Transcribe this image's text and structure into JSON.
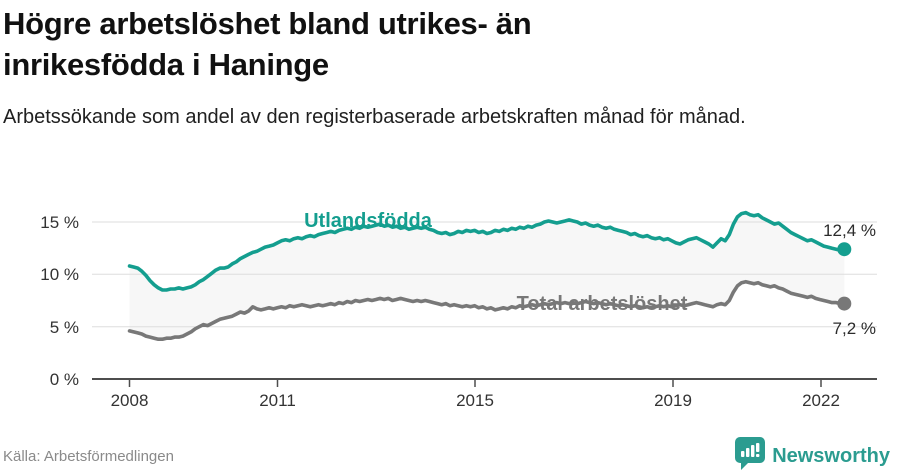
{
  "header": {
    "title": "Högre arbetslöshet bland utrikes- än inrikesfödda i Haninge",
    "subtitle": "Arbetssökande som andel av den registerbaserade arbetskraften månad för månad."
  },
  "footer": {
    "source": "Källa: Arbetsförmedlingen",
    "brand": "Newsworthy"
  },
  "colors": {
    "utlandsfodda": "#149e8f",
    "total": "#787878",
    "brand_teal": "#2b9c90",
    "area_fill": "#f7f7f7"
  },
  "chart_data": {
    "type": "line",
    "title": "Högre arbetslöshet bland utrikes- än inrikesfödda i Haninge",
    "x_start": "2008-01",
    "x_end": "2022-07",
    "x_step": "monthly",
    "ylim": [
      0,
      16.5
    ],
    "grid": true,
    "area_fill_between_series": true,
    "yticks": [
      {
        "value": 0,
        "label": "0 %"
      },
      {
        "value": 5,
        "label": "5 %"
      },
      {
        "value": 10,
        "label": "10 %"
      },
      {
        "value": 15,
        "label": "15 %"
      }
    ],
    "xticks": [
      {
        "year": 2008,
        "label": "2008"
      },
      {
        "year": 2011,
        "label": "2011"
      },
      {
        "year": 2015,
        "label": "2015"
      },
      {
        "year": 2019,
        "label": "2019"
      },
      {
        "year": 2022,
        "label": "2022"
      }
    ],
    "series": [
      {
        "name": "Utlandsfödda",
        "color": "#149e8f",
        "end_value": 12.4,
        "end_label": "12,4 %",
        "values": [
          10.8,
          10.7,
          10.6,
          10.3,
          9.9,
          9.4,
          9.0,
          8.7,
          8.5,
          8.5,
          8.6,
          8.6,
          8.7,
          8.6,
          8.7,
          8.8,
          9.0,
          9.3,
          9.5,
          9.8,
          10.1,
          10.4,
          10.6,
          10.6,
          10.7,
          11.0,
          11.2,
          11.5,
          11.7,
          11.9,
          12.1,
          12.2,
          12.4,
          12.6,
          12.7,
          12.8,
          13.0,
          13.2,
          13.3,
          13.2,
          13.4,
          13.5,
          13.4,
          13.6,
          13.7,
          13.6,
          13.8,
          13.9,
          14.0,
          14.1,
          14.0,
          14.2,
          14.3,
          14.4,
          14.3,
          14.5,
          14.4,
          14.6,
          14.5,
          14.6,
          14.7,
          14.8,
          14.6,
          14.7,
          14.5,
          14.6,
          14.4,
          14.5,
          14.3,
          14.4,
          14.5,
          14.4,
          14.5,
          14.3,
          14.2,
          14.0,
          13.9,
          14.0,
          13.8,
          13.9,
          14.1,
          14.0,
          14.2,
          14.1,
          14.2,
          14.0,
          14.1,
          13.9,
          14.0,
          14.2,
          14.1,
          14.3,
          14.2,
          14.4,
          14.3,
          14.5,
          14.4,
          14.6,
          14.5,
          14.7,
          14.8,
          15.0,
          15.1,
          15.0,
          14.9,
          15.0,
          15.1,
          15.2,
          15.1,
          15.0,
          14.8,
          14.9,
          14.7,
          14.6,
          14.7,
          14.5,
          14.4,
          14.5,
          14.3,
          14.2,
          14.1,
          14.0,
          13.8,
          13.9,
          13.7,
          13.6,
          13.7,
          13.5,
          13.4,
          13.5,
          13.3,
          13.4,
          13.2,
          13.0,
          12.9,
          13.1,
          13.3,
          13.4,
          13.5,
          13.3,
          13.1,
          12.9,
          12.6,
          13.0,
          13.4,
          13.2,
          13.8,
          14.8,
          15.5,
          15.8,
          15.9,
          15.7,
          15.6,
          15.7,
          15.4,
          15.2,
          15.0,
          14.8,
          14.9,
          14.6,
          14.3,
          14.0,
          13.8,
          13.6,
          13.4,
          13.2,
          13.3,
          13.1,
          12.9,
          12.7,
          12.6,
          12.5,
          12.4,
          12.3,
          12.4
        ]
      },
      {
        "name": "Total arbetslöshet",
        "color": "#787878",
        "end_value": 7.2,
        "end_label": "7,2 %",
        "values": [
          4.6,
          4.5,
          4.4,
          4.3,
          4.1,
          4.0,
          3.9,
          3.8,
          3.8,
          3.9,
          3.9,
          4.0,
          4.0,
          4.1,
          4.3,
          4.5,
          4.8,
          5.0,
          5.2,
          5.1,
          5.3,
          5.5,
          5.7,
          5.8,
          5.9,
          6.0,
          6.2,
          6.4,
          6.3,
          6.5,
          6.9,
          6.7,
          6.6,
          6.7,
          6.8,
          6.7,
          6.8,
          6.9,
          6.8,
          7.0,
          6.9,
          7.0,
          7.1,
          7.0,
          6.9,
          7.0,
          7.1,
          7.0,
          7.1,
          7.2,
          7.1,
          7.3,
          7.2,
          7.4,
          7.3,
          7.5,
          7.4,
          7.5,
          7.6,
          7.5,
          7.6,
          7.7,
          7.6,
          7.7,
          7.5,
          7.6,
          7.7,
          7.6,
          7.5,
          7.4,
          7.5,
          7.4,
          7.5,
          7.4,
          7.3,
          7.2,
          7.1,
          7.2,
          7.0,
          7.1,
          7.0,
          6.9,
          7.0,
          6.9,
          7.0,
          6.8,
          6.9,
          6.7,
          6.8,
          6.6,
          6.7,
          6.8,
          6.7,
          6.9,
          6.8,
          7.0,
          6.9,
          7.0,
          7.1,
          7.0,
          7.1,
          7.2,
          7.1,
          7.2,
          7.3,
          7.2,
          7.3,
          7.2,
          7.3,
          7.2,
          7.3,
          7.4,
          7.3,
          7.2,
          7.3,
          7.2,
          7.1,
          7.2,
          7.1,
          7.0,
          7.1,
          7.0,
          6.9,
          7.0,
          6.9,
          6.8,
          6.9,
          6.8,
          6.9,
          7.0,
          6.9,
          7.0,
          6.9,
          7.0,
          7.1,
          7.0,
          7.1,
          7.2,
          7.3,
          7.2,
          7.1,
          7.0,
          6.9,
          7.1,
          7.2,
          7.1,
          7.5,
          8.3,
          8.9,
          9.2,
          9.3,
          9.2,
          9.1,
          9.2,
          9.0,
          8.9,
          8.8,
          8.9,
          8.7,
          8.6,
          8.4,
          8.2,
          8.1,
          8.0,
          7.9,
          7.8,
          7.9,
          7.7,
          7.6,
          7.5,
          7.4,
          7.3,
          7.3,
          7.2,
          7.2
        ]
      }
    ]
  }
}
